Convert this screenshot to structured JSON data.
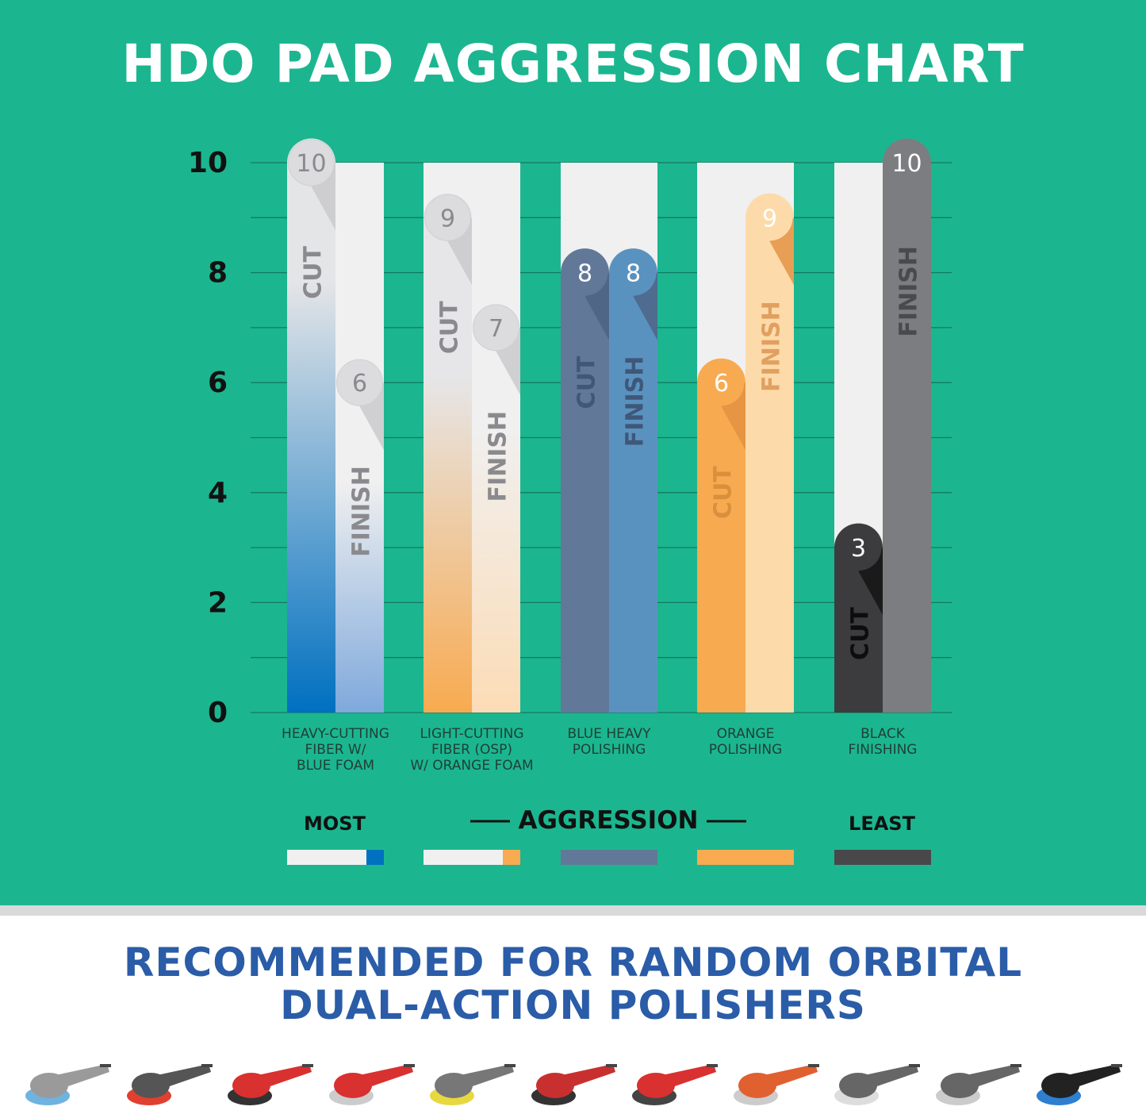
{
  "title": "HDO PAD AGGRESSION CHART",
  "chart_data": {
    "type": "bar",
    "title": "HDO PAD AGGRESSION CHART",
    "ylim": [
      0,
      10
    ],
    "yticks": [
      "0",
      "2",
      "4",
      "6",
      "8",
      "10"
    ],
    "grid": true,
    "categories": [
      "HEAVY-CUTTING FIBER W/ BLUE FOAM",
      "LIGHT-CUTTING FIBER (OSP) W/ ORANGE FOAM",
      "BLUE HEAVY POLISHING",
      "ORANGE POLISHING",
      "BLACK FINISHING"
    ],
    "category_lines": [
      [
        "HEAVY-CUTTING",
        "FIBER W/",
        "BLUE FOAM"
      ],
      [
        "LIGHT-CUTTING",
        "FIBER (OSP)",
        "W/ ORANGE FOAM"
      ],
      [
        "BLUE HEAVY",
        "POLISHING"
      ],
      [
        "ORANGE",
        "POLISHING"
      ],
      [
        "BLACK",
        "FINISHING"
      ]
    ],
    "series": [
      {
        "name": "CUT",
        "values": [
          10,
          9,
          8,
          6,
          3
        ],
        "colors": [
          "#0070c0",
          "#f8aa50",
          "#627898",
          "#f8aa50",
          "#3c3c3f"
        ]
      },
      {
        "name": "FINISH",
        "values": [
          6,
          7,
          8,
          9,
          10
        ],
        "colors": [
          "#7ea9dc",
          "#fcdcb6",
          "#5a92bf",
          "#fddaa9",
          "#7c7d81"
        ]
      }
    ],
    "track_color": "#f0f0f0"
  },
  "legend": {
    "most": "MOST",
    "aggression": "AGGRESSION",
    "least": "LEAST",
    "swatches": [
      [
        "#f0f0f0",
        "#0070c0"
      ],
      [
        "#f0f0f0",
        "#f8aa50"
      ],
      [
        "#627898"
      ],
      [
        "#f8aa50"
      ],
      [
        "#48484b"
      ]
    ]
  },
  "colors": {
    "background": "#1bb68f",
    "subtitle": "#2a5ca8"
  },
  "subtitle": [
    "RECOMMENDED FOR RANDOM ORBITAL",
    "DUAL-ACTION POLISHERS"
  ],
  "polishers": [
    {
      "body": "#9a9a9a",
      "pad": "#6fb3e0"
    },
    {
      "body": "#555",
      "pad": "#e04030"
    },
    {
      "body": "#d93030",
      "pad": "#333"
    },
    {
      "body": "#d93030",
      "pad": "#ccc"
    },
    {
      "body": "#777",
      "pad": "#e8d840"
    },
    {
      "body": "#c83030",
      "pad": "#333"
    },
    {
      "body": "#d93030",
      "pad": "#444"
    },
    {
      "body": "#e06030",
      "pad": "#ccc"
    },
    {
      "body": "#666",
      "pad": "#ddd"
    },
    {
      "body": "#666",
      "pad": "#ccc"
    },
    {
      "body": "#222",
      "pad": "#2f7fd0"
    }
  ]
}
